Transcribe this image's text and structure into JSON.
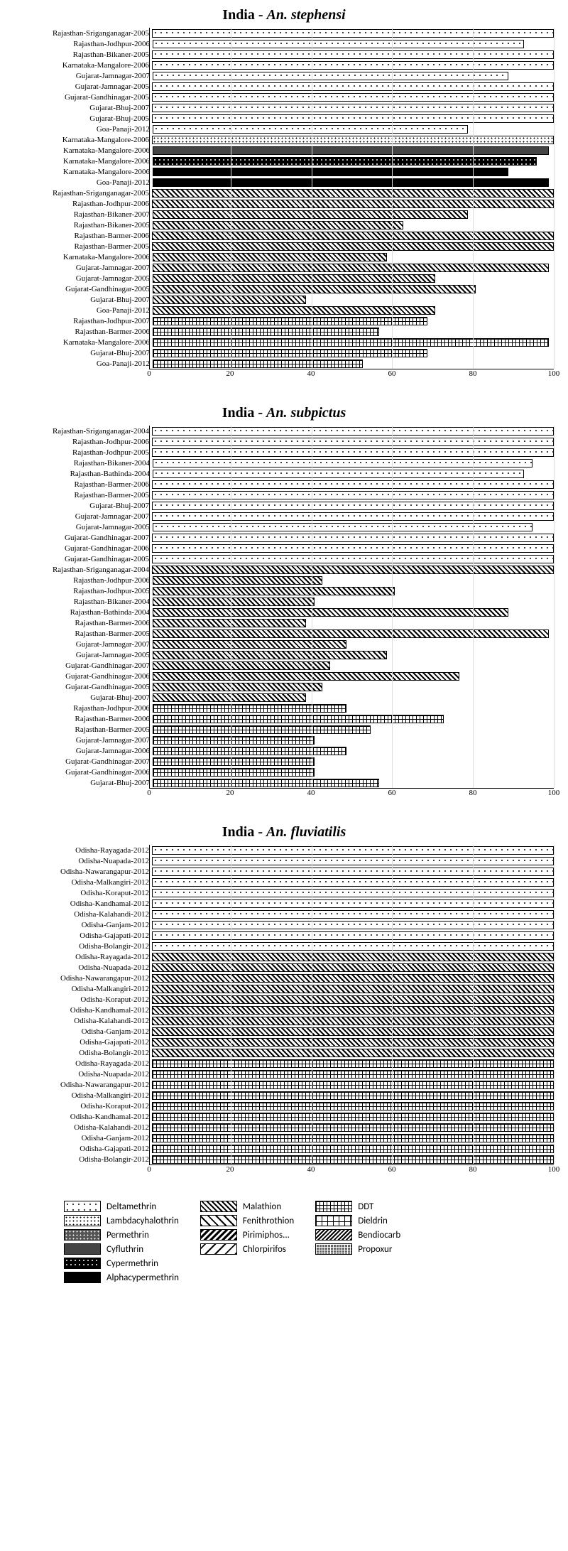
{
  "charts": [
    {
      "country": "India",
      "species": "An. stephensi",
      "xmax": 100,
      "xticks": [
        0,
        20,
        40,
        60,
        80,
        100
      ],
      "bars": [
        {
          "label": "Rajasthan-Sriganganagar-2005",
          "value": 100,
          "pattern": "deltamethrin"
        },
        {
          "label": "Rajasthan-Jodhpur-2006",
          "value": 92,
          "pattern": "deltamethrin"
        },
        {
          "label": "Rajasthan-Bikaner-2005",
          "value": 100,
          "pattern": "deltamethrin"
        },
        {
          "label": "Karnataka-Mangalore-2006",
          "value": 100,
          "pattern": "deltamethrin"
        },
        {
          "label": "Gujarat-Jamnagar-2007",
          "value": 88,
          "pattern": "deltamethrin"
        },
        {
          "label": "Gujarat-Jamnagar-2005",
          "value": 100,
          "pattern": "deltamethrin"
        },
        {
          "label": "Gujarat-Gandhinagar-2005",
          "value": 100,
          "pattern": "deltamethrin"
        },
        {
          "label": "Gujarat-Bhuj-2007",
          "value": 100,
          "pattern": "deltamethrin"
        },
        {
          "label": "Gujarat-Bhuj-2005",
          "value": 100,
          "pattern": "deltamethrin"
        },
        {
          "label": "Goa-Panaji-2012",
          "value": 78,
          "pattern": "deltamethrin"
        },
        {
          "label": "Karnataka-Mangalore-2006",
          "value": 100,
          "pattern": "lambdacyhalothrin"
        },
        {
          "label": "Karnataka-Mangalore-2006",
          "value": 98,
          "pattern": "cyfluthrin"
        },
        {
          "label": "Karnataka-Mangalore-2006",
          "value": 95,
          "pattern": "cypermethrin"
        },
        {
          "label": "Karnataka-Mangalore-2006",
          "value": 88,
          "pattern": "alphacypermethrin"
        },
        {
          "label": "Goa-Panaji-2012",
          "value": 98,
          "pattern": "alphacypermethrin"
        },
        {
          "label": "Rajasthan-Sriganganagar-2005",
          "value": 100,
          "pattern": "malathion"
        },
        {
          "label": "Rajasthan-Jodhpur-2006",
          "value": 100,
          "pattern": "malathion"
        },
        {
          "label": "Rajasthan-Bikaner-2007",
          "value": 78,
          "pattern": "malathion"
        },
        {
          "label": "Rajasthan-Bikaner-2005",
          "value": 62,
          "pattern": "malathion"
        },
        {
          "label": "Rajasthan-Barmer-2006",
          "value": 100,
          "pattern": "malathion"
        },
        {
          "label": "Rajasthan-Barmer-2005",
          "value": 100,
          "pattern": "malathion"
        },
        {
          "label": "Karnataka-Mangalore-2006",
          "value": 58,
          "pattern": "malathion"
        },
        {
          "label": "Gujarat-Jamnagar-2007",
          "value": 98,
          "pattern": "malathion"
        },
        {
          "label": "Gujarat-Jamnagar-2005",
          "value": 70,
          "pattern": "malathion"
        },
        {
          "label": "Gujarat-Gandhinagar-2005",
          "value": 80,
          "pattern": "malathion"
        },
        {
          "label": "Gujarat-Bhuj-2007",
          "value": 38,
          "pattern": "malathion"
        },
        {
          "label": "Goa-Panaji-2012",
          "value": 70,
          "pattern": "malathion"
        },
        {
          "label": "Rajasthan-Jodhpur-2007",
          "value": 68,
          "pattern": "ddt"
        },
        {
          "label": "Rajasthan-Barmer-2006",
          "value": 56,
          "pattern": "ddt"
        },
        {
          "label": "Karnataka-Mangalore-2006",
          "value": 98,
          "pattern": "ddt"
        },
        {
          "label": "Gujarat-Bhuj-2007",
          "value": 68,
          "pattern": "ddt"
        },
        {
          "label": "Goa-Panaji-2012",
          "value": 52,
          "pattern": "ddt"
        }
      ]
    },
    {
      "country": "India",
      "species": "An. subpictus",
      "xmax": 100,
      "xticks": [
        0,
        20,
        40,
        60,
        80,
        100
      ],
      "bars": [
        {
          "label": "Rajasthan-Sriganganagar-2004",
          "value": 100,
          "pattern": "deltamethrin"
        },
        {
          "label": "Rajasthan-Jodhpur-2006",
          "value": 100,
          "pattern": "deltamethrin"
        },
        {
          "label": "Rajasthan-Jodhpur-2005",
          "value": 100,
          "pattern": "deltamethrin"
        },
        {
          "label": "Rajasthan-Bikaner-2004",
          "value": 94,
          "pattern": "deltamethrin"
        },
        {
          "label": "Rajasthan-Bathinda-2004",
          "value": 92,
          "pattern": "deltamethrin"
        },
        {
          "label": "Rajasthan-Barmer-2006",
          "value": 100,
          "pattern": "deltamethrin"
        },
        {
          "label": "Rajasthan-Barmer-2005",
          "value": 100,
          "pattern": "deltamethrin"
        },
        {
          "label": "Gujarat-Bhuj-2007",
          "value": 100,
          "pattern": "deltamethrin"
        },
        {
          "label": "Gujarat-Jamnagar-2007",
          "value": 100,
          "pattern": "deltamethrin"
        },
        {
          "label": "Gujarat-Jamnagar-2005",
          "value": 94,
          "pattern": "deltamethrin"
        },
        {
          "label": "Gujarat-Gandhinagar-2007",
          "value": 100,
          "pattern": "deltamethrin"
        },
        {
          "label": "Gujarat-Gandhinagar-2006",
          "value": 100,
          "pattern": "deltamethrin"
        },
        {
          "label": "Gujarat-Gandhinagar-2005",
          "value": 100,
          "pattern": "deltamethrin"
        },
        {
          "label": "Rajasthan-Sriganganagar-2004",
          "value": 100,
          "pattern": "malathion"
        },
        {
          "label": "Rajasthan-Jodhpur-2006",
          "value": 42,
          "pattern": "malathion"
        },
        {
          "label": "Rajasthan-Jodhpur-2005",
          "value": 60,
          "pattern": "malathion"
        },
        {
          "label": "Rajasthan-Bikaner-2004",
          "value": 40,
          "pattern": "malathion"
        },
        {
          "label": "Rajasthan-Bathinda-2004",
          "value": 88,
          "pattern": "malathion"
        },
        {
          "label": "Rajasthan-Barmer-2006",
          "value": 38,
          "pattern": "malathion"
        },
        {
          "label": "Rajasthan-Barmer-2005",
          "value": 98,
          "pattern": "malathion"
        },
        {
          "label": "Gujarat-Jamnagar-2007",
          "value": 48,
          "pattern": "malathion"
        },
        {
          "label": "Gujarat-Jamnagar-2005",
          "value": 58,
          "pattern": "malathion"
        },
        {
          "label": "Gujarat-Gandhinagar-2007",
          "value": 44,
          "pattern": "malathion"
        },
        {
          "label": "Gujarat-Gandhinagar-2006",
          "value": 76,
          "pattern": "malathion"
        },
        {
          "label": "Gujarat-Gandhinagar-2005",
          "value": 42,
          "pattern": "malathion"
        },
        {
          "label": "Gujarat-Bhuj-2007",
          "value": 38,
          "pattern": "malathion"
        },
        {
          "label": "Rajasthan-Jodhpur-2006",
          "value": 48,
          "pattern": "ddt"
        },
        {
          "label": "Rajasthan-Barmer-2006",
          "value": 72,
          "pattern": "ddt"
        },
        {
          "label": "Rajasthan-Barmer-2005",
          "value": 54,
          "pattern": "ddt"
        },
        {
          "label": "Gujarat-Jamnagar-2007",
          "value": 40,
          "pattern": "ddt"
        },
        {
          "label": "Gujarat-Jamnagar-2006",
          "value": 48,
          "pattern": "ddt"
        },
        {
          "label": "Gujarat-Gandhinagar-2007",
          "value": 40,
          "pattern": "ddt"
        },
        {
          "label": "Gujarat-Gandhinagar-2006",
          "value": 40,
          "pattern": "ddt"
        },
        {
          "label": "Gujarat-Bhuj-2007",
          "value": 56,
          "pattern": "ddt"
        }
      ]
    },
    {
      "country": "India",
      "species": "An. fluviatilis",
      "xmax": 100,
      "xticks": [
        0,
        20,
        40,
        60,
        80,
        100
      ],
      "bars": [
        {
          "label": "Odisha-Rayagada-2012",
          "value": 100,
          "pattern": "deltamethrin"
        },
        {
          "label": "Odisha-Nuapada-2012",
          "value": 100,
          "pattern": "deltamethrin"
        },
        {
          "label": "Odisha-Nawarangapur-2012",
          "value": 100,
          "pattern": "deltamethrin"
        },
        {
          "label": "Odisha-Malkangiri-2012",
          "value": 100,
          "pattern": "deltamethrin"
        },
        {
          "label": "Odisha-Koraput-2012",
          "value": 100,
          "pattern": "deltamethrin"
        },
        {
          "label": "Odisha-Kandhamal-2012",
          "value": 100,
          "pattern": "deltamethrin"
        },
        {
          "label": "Odisha-Kalahandi-2012",
          "value": 100,
          "pattern": "deltamethrin"
        },
        {
          "label": "Odisha-Ganjam-2012",
          "value": 100,
          "pattern": "deltamethrin"
        },
        {
          "label": "Odisha-Gajapati-2012",
          "value": 100,
          "pattern": "deltamethrin"
        },
        {
          "label": "Odisha-Bolangir-2012",
          "value": 100,
          "pattern": "deltamethrin"
        },
        {
          "label": "Odisha-Rayagada-2012",
          "value": 100,
          "pattern": "malathion"
        },
        {
          "label": "Odisha-Nuapada-2012",
          "value": 100,
          "pattern": "malathion"
        },
        {
          "label": "Odisha-Nawarangapur-2012",
          "value": 100,
          "pattern": "malathion"
        },
        {
          "label": "Odisha-Malkangiri-2012",
          "value": 100,
          "pattern": "malathion"
        },
        {
          "label": "Odisha-Koraput-2012",
          "value": 100,
          "pattern": "malathion"
        },
        {
          "label": "Odisha-Kandhamal-2012",
          "value": 100,
          "pattern": "malathion"
        },
        {
          "label": "Odisha-Kalahandi-2012",
          "value": 100,
          "pattern": "malathion"
        },
        {
          "label": "Odisha-Ganjam-2012",
          "value": 100,
          "pattern": "malathion"
        },
        {
          "label": "Odisha-Gajapati-2012",
          "value": 100,
          "pattern": "malathion"
        },
        {
          "label": "Odisha-Bolangir-2012",
          "value": 100,
          "pattern": "malathion"
        },
        {
          "label": "Odisha-Rayagada-2012",
          "value": 100,
          "pattern": "ddt"
        },
        {
          "label": "Odisha-Nuapada-2012",
          "value": 100,
          "pattern": "ddt"
        },
        {
          "label": "Odisha-Nawarangapur-2012",
          "value": 100,
          "pattern": "ddt"
        },
        {
          "label": "Odisha-Malkangiri-2012",
          "value": 100,
          "pattern": "ddt"
        },
        {
          "label": "Odisha-Koraput-2012",
          "value": 100,
          "pattern": "ddt"
        },
        {
          "label": "Odisha-Kandhamal-2012",
          "value": 100,
          "pattern": "ddt"
        },
        {
          "label": "Odisha-Kalahandi-2012",
          "value": 100,
          "pattern": "ddt"
        },
        {
          "label": "Odisha-Ganjam-2012",
          "value": 100,
          "pattern": "ddt"
        },
        {
          "label": "Odisha-Gajapati-2012",
          "value": 100,
          "pattern": "ddt"
        },
        {
          "label": "Odisha-Bolangir-2012",
          "value": 100,
          "pattern": "ddt"
        }
      ]
    }
  ],
  "legend": [
    [
      {
        "label": "Deltamethrin",
        "pattern": "deltamethrin"
      },
      {
        "label": "Lambdacyhalothrin",
        "pattern": "lambdacyhalothrin"
      },
      {
        "label": "Permethrin",
        "pattern": "permethrin"
      },
      {
        "label": "Cyfluthrin",
        "pattern": "cyfluthrin"
      },
      {
        "label": "Cypermethrin",
        "pattern": "cypermethrin"
      },
      {
        "label": "Alphacypermethrin",
        "pattern": "alphacypermethrin"
      }
    ],
    [
      {
        "label": "Malathion",
        "pattern": "malathion"
      },
      {
        "label": "Fenithrothion",
        "pattern": "fenithrothion"
      },
      {
        "label": "Pirimiphos...",
        "pattern": "pirimiphos"
      },
      {
        "label": "Chlorpirifos",
        "pattern": "chlorpirifos"
      }
    ],
    [
      {
        "label": "DDT",
        "pattern": "ddt"
      },
      {
        "label": "Dieldrin",
        "pattern": "dieldrin"
      },
      {
        "label": "Bendiocarb",
        "pattern": "bendiocarb"
      },
      {
        "label": "Propoxur",
        "pattern": "propoxur"
      }
    ]
  ]
}
